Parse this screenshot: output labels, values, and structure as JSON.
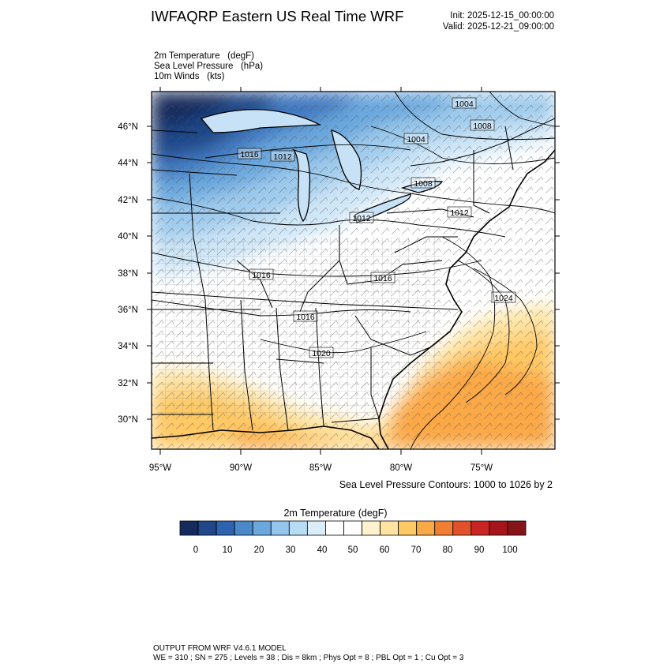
{
  "header": {
    "title": "IWFAQRP Eastern US Real Time WRF",
    "init": "Init: 2025-12-15_00:00:00",
    "valid": "Valid: 2025-12-21_09:00:00"
  },
  "fields": [
    {
      "name": "2m Temperature",
      "units": "(degF)"
    },
    {
      "name": "Sea Level Pressure",
      "units": "(hPa)"
    },
    {
      "name": "10m Winds",
      "units": "(kts)"
    }
  ],
  "map": {
    "lat_labels": [
      "46°N",
      "44°N",
      "42°N",
      "40°N",
      "38°N",
      "36°N",
      "34°N",
      "32°N",
      "30°N"
    ],
    "lon_labels": [
      "95°W",
      "90°W",
      "85°W",
      "80°W",
      "75°W"
    ],
    "contour_labels": [
      {
        "value": "1004"
      },
      {
        "value": "1008"
      },
      {
        "value": "1004"
      },
      {
        "value": "1016"
      },
      {
        "value": "1012"
      },
      {
        "value": "1008"
      },
      {
        "value": "1012"
      },
      {
        "value": "1012"
      },
      {
        "value": "1016"
      },
      {
        "value": "1016"
      },
      {
        "value": "1024"
      },
      {
        "value": "1016"
      },
      {
        "value": "1020"
      }
    ]
  },
  "slp_note": "Sea Level Pressure Contours: 1000 to 1026 by 2",
  "colorbar": {
    "title": "2m Temperature  (degF)",
    "labels": [
      "0",
      "10",
      "20",
      "30",
      "40",
      "50",
      "60",
      "70",
      "80",
      "90",
      "100"
    ],
    "colors": [
      "#162a5c",
      "#1f4789",
      "#2e63b0",
      "#4a88c9",
      "#6aa7dd",
      "#92c6ec",
      "#b7dcf4",
      "#dcedfa",
      "#ffffff",
      "#ffffff",
      "#fff2cf",
      "#ffe3a1",
      "#ffc965",
      "#fba846",
      "#f27e34",
      "#e3512b",
      "#c92525",
      "#a4161c",
      "#86151a"
    ]
  },
  "footer": {
    "line1": "OUTPUT FROM WRF V4.6.1 MODEL",
    "line2": "WE = 310 ; SN = 275 ; Levels = 38 ; Dis = 8km ; Phys Opt = 8 ; PBL Opt = 1 ; Cu Opt = 3"
  }
}
